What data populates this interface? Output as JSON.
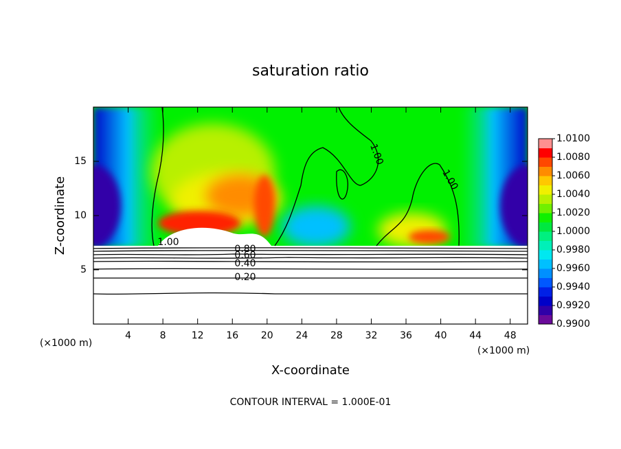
{
  "chart_data": {
    "type": "contour",
    "title": "saturation ratio",
    "xlabel": "X-coordinate",
    "ylabel": "Z-coordinate",
    "x_unit": "(×1000 m)",
    "y_unit": "(×1000 m)",
    "note": "CONTOUR INTERVAL = 1.000E-01",
    "xlim": [
      0,
      50
    ],
    "xticks": [
      4,
      8,
      12,
      16,
      20,
      24,
      28,
      32,
      36,
      40,
      44,
      48
    ],
    "ylim": [
      0,
      20
    ],
    "yticks": [
      5,
      10,
      15
    ],
    "contour_labels": [
      "1.00",
      "1.00",
      "1.00",
      "0.80",
      "0.60",
      "0.40",
      "0.20"
    ],
    "colorbar": {
      "zlim": [
        0.99,
        1.01
      ],
      "zticks": [
        {
          "value": 0.99,
          "label": "0.9900"
        },
        {
          "value": 0.992,
          "label": "0.9920"
        },
        {
          "value": 0.994,
          "label": "0.9940"
        },
        {
          "value": 0.996,
          "label": "0.9960"
        },
        {
          "value": 0.998,
          "label": "0.9980"
        },
        {
          "value": 1.0,
          "label": "1.0000"
        },
        {
          "value": 1.002,
          "label": "1.0020"
        },
        {
          "value": 1.004,
          "label": "1.0040"
        },
        {
          "value": 1.006,
          "label": "1.0060"
        },
        {
          "value": 1.008,
          "label": "1.0080"
        },
        {
          "value": 1.01,
          "label": "1.0100"
        }
      ],
      "colors": [
        "#6a0a9a",
        "#3000a8",
        "#0000c8",
        "#0020e6",
        "#0058ff",
        "#0090ff",
        "#00c0ff",
        "#00e8f0",
        "#00f0b8",
        "#00f080",
        "#00e840",
        "#10f000",
        "#70f000",
        "#b8f000",
        "#f0f000",
        "#ffc800",
        "#ff8c00",
        "#ff4800",
        "#ff0000",
        "#ff9090"
      ]
    }
  }
}
